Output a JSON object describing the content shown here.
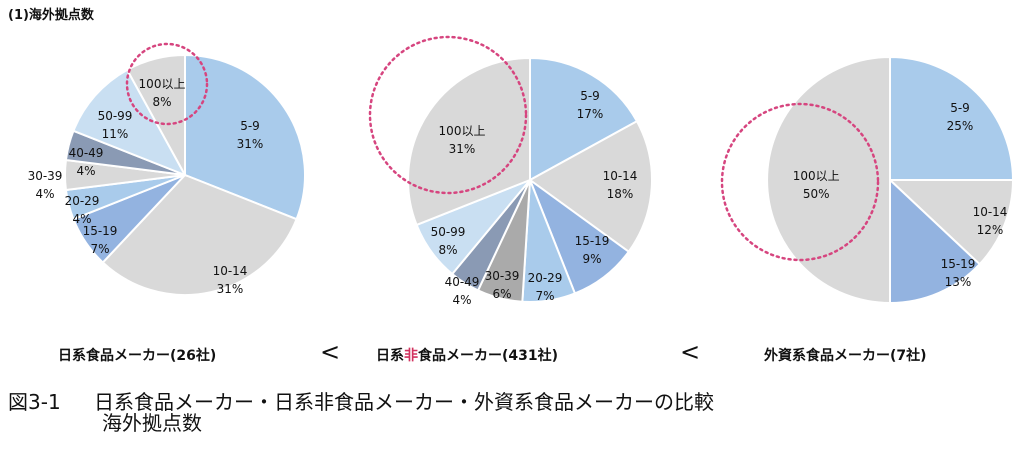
{
  "section_title": "(1)海外拠点数",
  "caption": {
    "number": "図3-1",
    "line1": "日系食品メーカー・日系非食品メーカー・外資系食品メーカーの比較",
    "line2": "海外拠点数"
  },
  "comparison_symbols": [
    "<",
    "<"
  ],
  "colors": {
    "light_blue": "#a9cbeb",
    "gray": "#d9d9d9",
    "mid_blue": "#93b3e0",
    "slate": "#8a9ab4",
    "highlight": "#d6457f",
    "emphasis_text": "#d2335f"
  },
  "chart_data": [
    {
      "type": "pie",
      "title_parts": [
        "日系食品メーカー(26社)"
      ],
      "slices": [
        {
          "label": "5-9",
          "value": 31,
          "pct": "31%",
          "color": "#a9cbeb"
        },
        {
          "label": "10-14",
          "value": 31,
          "pct": "31%",
          "color": "#d9d9d9"
        },
        {
          "label": "15-19",
          "value": 7,
          "pct": "7%",
          "color": "#93b3e0"
        },
        {
          "label": "20-29",
          "value": 4,
          "pct": "4%",
          "color": "#a9cbeb"
        },
        {
          "label": "30-39",
          "value": 4,
          "pct": "4%",
          "color": "#d9d9d9"
        },
        {
          "label": "40-49",
          "value": 4,
          "pct": "4%",
          "color": "#8a9ab4"
        },
        {
          "label": "50-99",
          "value": 11,
          "pct": "11%",
          "color": "#c9dff2"
        },
        {
          "label": "100以上",
          "value": 8,
          "pct": "8%",
          "color": "#d9d9d9"
        }
      ],
      "highlight": "100以上"
    },
    {
      "type": "pie",
      "title_parts": [
        "日系",
        "非",
        "食品メーカー(431社)"
      ],
      "slices": [
        {
          "label": "5-9",
          "value": 17,
          "pct": "17%",
          "color": "#a9cbeb"
        },
        {
          "label": "10-14",
          "value": 18,
          "pct": "18%",
          "color": "#d9d9d9"
        },
        {
          "label": "15-19",
          "value": 9,
          "pct": "9%",
          "color": "#93b3e0"
        },
        {
          "label": "20-29",
          "value": 7,
          "pct": "7%",
          "color": "#a9cbeb"
        },
        {
          "label": "30-39",
          "value": 6,
          "pct": "6%",
          "color": "#aaaaaa"
        },
        {
          "label": "40-49",
          "value": 4,
          "pct": "4%",
          "color": "#8a9ab4"
        },
        {
          "label": "50-99",
          "value": 8,
          "pct": "8%",
          "color": "#c9dff2"
        },
        {
          "label": "100以上",
          "value": 31,
          "pct": "31%",
          "color": "#d9d9d9"
        }
      ],
      "highlight": "100以上"
    },
    {
      "type": "pie",
      "title_parts": [
        "外資系食品メーカー(7社)"
      ],
      "slices": [
        {
          "label": "5-9",
          "value": 25,
          "pct": "25%",
          "color": "#a9cbeb"
        },
        {
          "label": "10-14",
          "value": 12,
          "pct": "12%",
          "color": "#d9d9d9"
        },
        {
          "label": "15-19",
          "value": 13,
          "pct": "13%",
          "color": "#93b3e0"
        },
        {
          "label": "100以上",
          "value": 50,
          "pct": "50%",
          "color": "#d9d9d9"
        }
      ],
      "highlight": "100以上"
    }
  ]
}
